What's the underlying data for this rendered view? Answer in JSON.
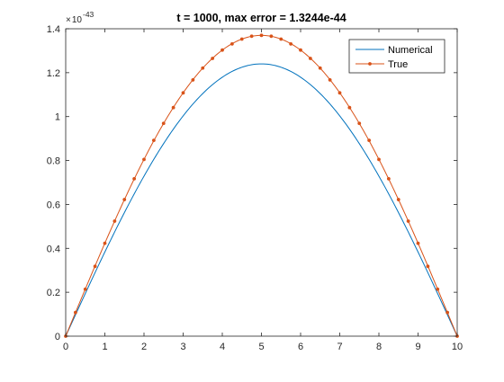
{
  "chart_data": {
    "type": "line",
    "title": "t = 1000, max error = 1.3244e-44",
    "xlabel": "",
    "ylabel": "",
    "y_exponent_base": "10",
    "y_exponent": "-43",
    "xlim": [
      0,
      10
    ],
    "ylim": [
      0,
      1.4
    ],
    "x_ticks": [
      0,
      1,
      2,
      3,
      4,
      5,
      6,
      7,
      8,
      9,
      10
    ],
    "x_tick_labels": [
      "0",
      "1",
      "2",
      "3",
      "4",
      "5",
      "6",
      "7",
      "8",
      "9",
      "10"
    ],
    "y_ticks": [
      0,
      0.2,
      0.4,
      0.6,
      0.8,
      1,
      1.2,
      1.4
    ],
    "y_tick_labels": [
      "0",
      "0.2",
      "0.4",
      "0.6",
      "0.8",
      "1",
      "1.2",
      "1.4"
    ],
    "grid": false,
    "legend_position": "top-right",
    "series": [
      {
        "name": "Numerical",
        "color": "#0072bd",
        "marker": "none",
        "amplitude": 1.24,
        "x": [
          0,
          0.5,
          1,
          1.5,
          2,
          2.5,
          3,
          3.5,
          4,
          4.5,
          5,
          5.5,
          6,
          6.5,
          7,
          7.5,
          8,
          8.5,
          9,
          9.5,
          10
        ],
        "values": [
          0,
          0.194,
          0.383,
          0.563,
          0.729,
          0.877,
          1.003,
          1.105,
          1.179,
          1.225,
          1.24,
          1.225,
          1.179,
          1.105,
          1.003,
          0.877,
          0.729,
          0.563,
          0.383,
          0.194,
          0
        ]
      },
      {
        "name": "True",
        "color": "#d95319",
        "marker": "dot",
        "amplitude": 1.37,
        "x": [
          0,
          0.25,
          0.5,
          0.75,
          1,
          1.25,
          1.5,
          1.75,
          2,
          2.25,
          2.5,
          2.75,
          3,
          3.25,
          3.5,
          3.75,
          4,
          4.25,
          4.5,
          4.75,
          5,
          5.25,
          5.5,
          5.75,
          6,
          6.25,
          6.5,
          6.75,
          7,
          7.25,
          7.5,
          7.75,
          8,
          8.25,
          8.5,
          8.75,
          9,
          9.25,
          9.5,
          9.75,
          10
        ],
        "values": [
          0,
          0.108,
          0.214,
          0.318,
          0.423,
          0.524,
          0.622,
          0.717,
          0.805,
          0.892,
          0.969,
          1.041,
          1.108,
          1.167,
          1.221,
          1.265,
          1.303,
          1.331,
          1.353,
          1.366,
          1.37,
          1.366,
          1.353,
          1.331,
          1.303,
          1.265,
          1.221,
          1.167,
          1.108,
          1.041,
          0.969,
          0.892,
          0.805,
          0.717,
          0.622,
          0.524,
          0.423,
          0.318,
          0.214,
          0.108,
          0
        ]
      }
    ]
  }
}
